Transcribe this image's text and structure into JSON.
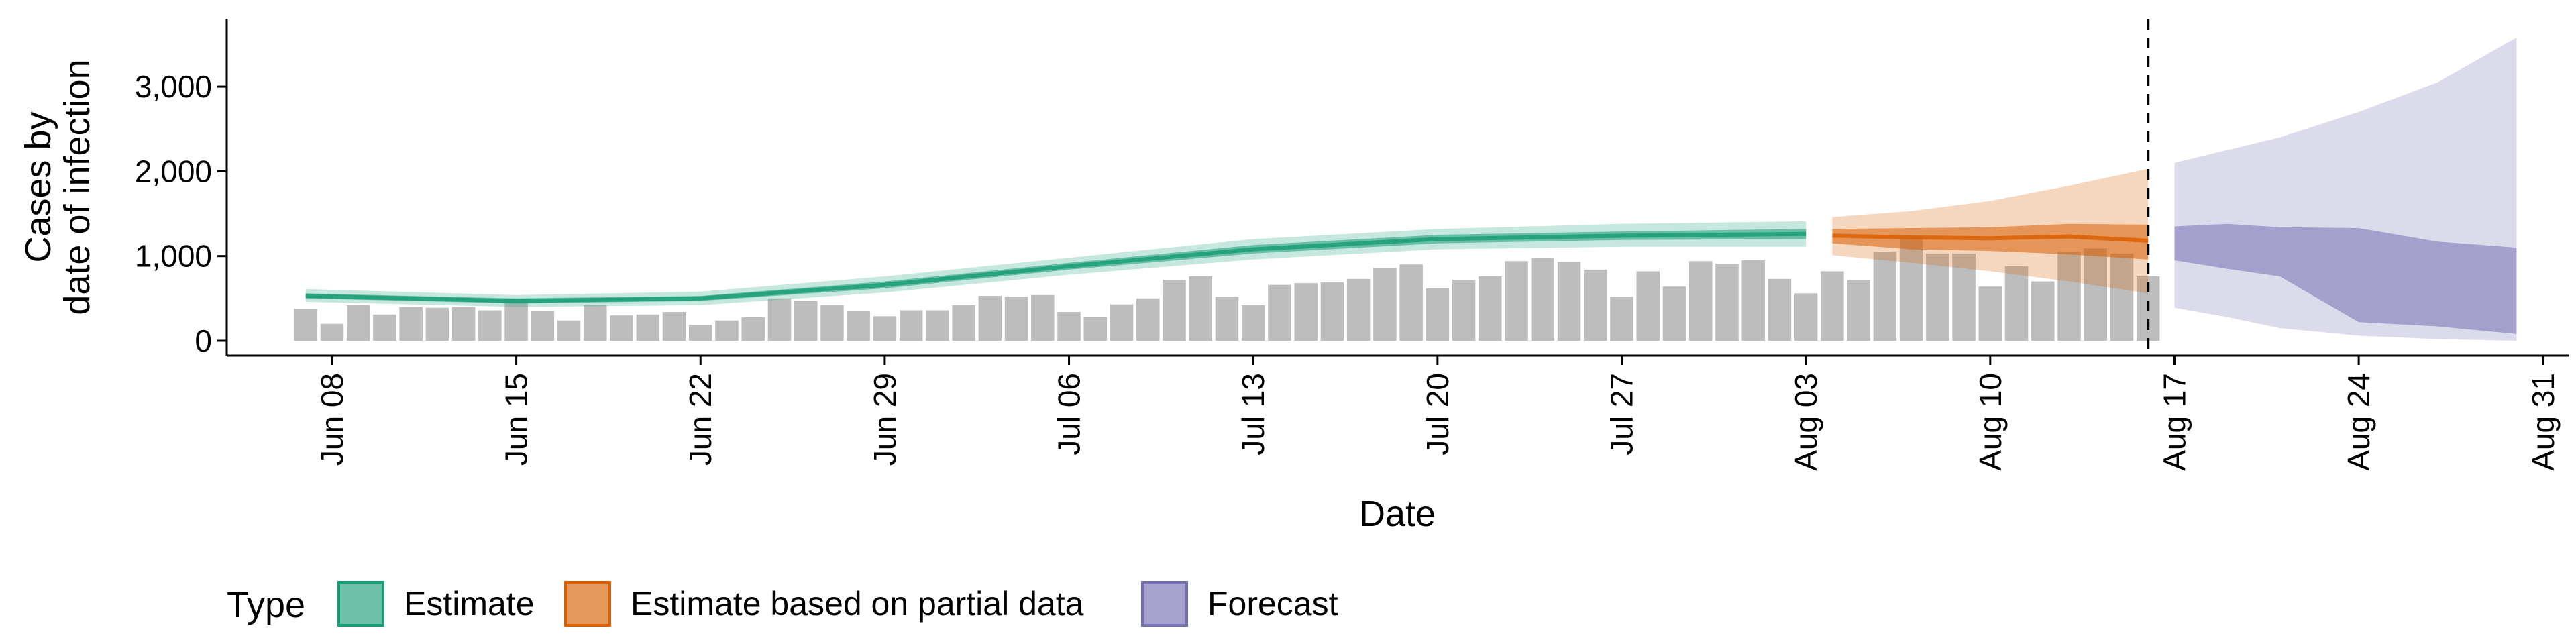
{
  "chart_data": {
    "type": "bar",
    "xlabel": "Date",
    "ylabel_lines": [
      "Cases by",
      "date of infection"
    ],
    "ylim": [
      0,
      3800
    ],
    "yticks": [
      {
        "value": 0,
        "label": "0"
      },
      {
        "value": 1000,
        "label": "1,000"
      },
      {
        "value": 2000,
        "label": "2,000"
      },
      {
        "value": 3000,
        "label": "3,000"
      }
    ],
    "xlim": [
      "2020-06-04",
      "2020-09-01"
    ],
    "xticks": [
      {
        "date": "2020-06-08",
        "label": "Jun 08"
      },
      {
        "date": "2020-06-15",
        "label": "Jun 15"
      },
      {
        "date": "2020-06-22",
        "label": "Jun 22"
      },
      {
        "date": "2020-06-29",
        "label": "Jun 29"
      },
      {
        "date": "2020-07-06",
        "label": "Jul 06"
      },
      {
        "date": "2020-07-13",
        "label": "Jul 13"
      },
      {
        "date": "2020-07-20",
        "label": "Jul 20"
      },
      {
        "date": "2020-07-27",
        "label": "Jul 27"
      },
      {
        "date": "2020-08-03",
        "label": "Aug 03"
      },
      {
        "date": "2020-08-10",
        "label": "Aug 10"
      },
      {
        "date": "2020-08-17",
        "label": "Aug 17"
      },
      {
        "date": "2020-08-24",
        "label": "Aug 24"
      },
      {
        "date": "2020-08-31",
        "label": "Aug 31"
      }
    ],
    "grid": false,
    "legend_position": "bottom",
    "legend_title": "Type",
    "legend": [
      {
        "label": "Estimate",
        "color": "#1b9e77"
      },
      {
        "label": "Estimate based on partial data",
        "color": "#d95f02"
      },
      {
        "label": "Forecast",
        "color": "#7570b3"
      }
    ],
    "bar_color": "#bdbdbd",
    "reference_line_date": "2020-08-16",
    "bars": {
      "start_date": "2020-06-07",
      "values": [
        380,
        200,
        420,
        310,
        400,
        390,
        400,
        360,
        490,
        350,
        240,
        420,
        300,
        310,
        340,
        190,
        240,
        280,
        500,
        470,
        420,
        350,
        290,
        360,
        360,
        420,
        530,
        520,
        540,
        340,
        280,
        430,
        500,
        720,
        760,
        520,
        420,
        660,
        680,
        690,
        730,
        860,
        900,
        620,
        720,
        760,
        940,
        980,
        930,
        840,
        520,
        820,
        640,
        940,
        910,
        950,
        730,
        560,
        820,
        720,
        1050,
        1230,
        1030,
        1030,
        640,
        880,
        700,
        1050,
        1090,
        1030,
        760
      ]
    },
    "series": [
      {
        "name": "Estimate",
        "color": "#1b9e77",
        "dates": [
          "2020-06-07",
          "2020-06-15",
          "2020-06-22",
          "2020-06-29",
          "2020-07-06",
          "2020-07-13",
          "2020-07-20",
          "2020-07-27",
          "2020-08-03"
        ],
        "median": [
          530,
          470,
          500,
          660,
          880,
          1080,
          1200,
          1240,
          1260
        ],
        "lower50": [
          500,
          440,
          470,
          620,
          840,
          1030,
          1150,
          1190,
          1200
        ],
        "upper50": [
          560,
          500,
          530,
          700,
          920,
          1130,
          1250,
          1290,
          1320
        ],
        "lower90": [
          460,
          400,
          420,
          570,
          780,
          960,
          1080,
          1110,
          1110
        ],
        "upper90": [
          610,
          540,
          580,
          760,
          980,
          1200,
          1320,
          1380,
          1410
        ]
      },
      {
        "name": "Estimate based on partial data",
        "color": "#d95f02",
        "dates": [
          "2020-08-04",
          "2020-08-07",
          "2020-08-10",
          "2020-08-13",
          "2020-08-16"
        ],
        "median": [
          1240,
          1220,
          1210,
          1230,
          1180
        ],
        "lower50": [
          1150,
          1080,
          1060,
          1020,
          960
        ],
        "upper50": [
          1320,
          1330,
          1340,
          1380,
          1370
        ],
        "lower90": [
          1010,
          920,
          820,
          700,
          560
        ],
        "upper90": [
          1460,
          1530,
          1650,
          1830,
          2030
        ]
      },
      {
        "name": "Forecast",
        "color": "#7570b3",
        "dates": [
          "2020-08-17",
          "2020-08-19",
          "2020-08-21",
          "2020-08-24",
          "2020-08-27",
          "2020-08-30"
        ],
        "lower50": [
          950,
          850,
          760,
          220,
          170,
          80
        ],
        "upper50": [
          1350,
          1380,
          1340,
          1330,
          1170,
          1100
        ],
        "lower90": [
          390,
          280,
          150,
          60,
          20,
          0
        ],
        "upper90": [
          2100,
          2250,
          2400,
          2700,
          3050,
          3580
        ]
      }
    ]
  }
}
